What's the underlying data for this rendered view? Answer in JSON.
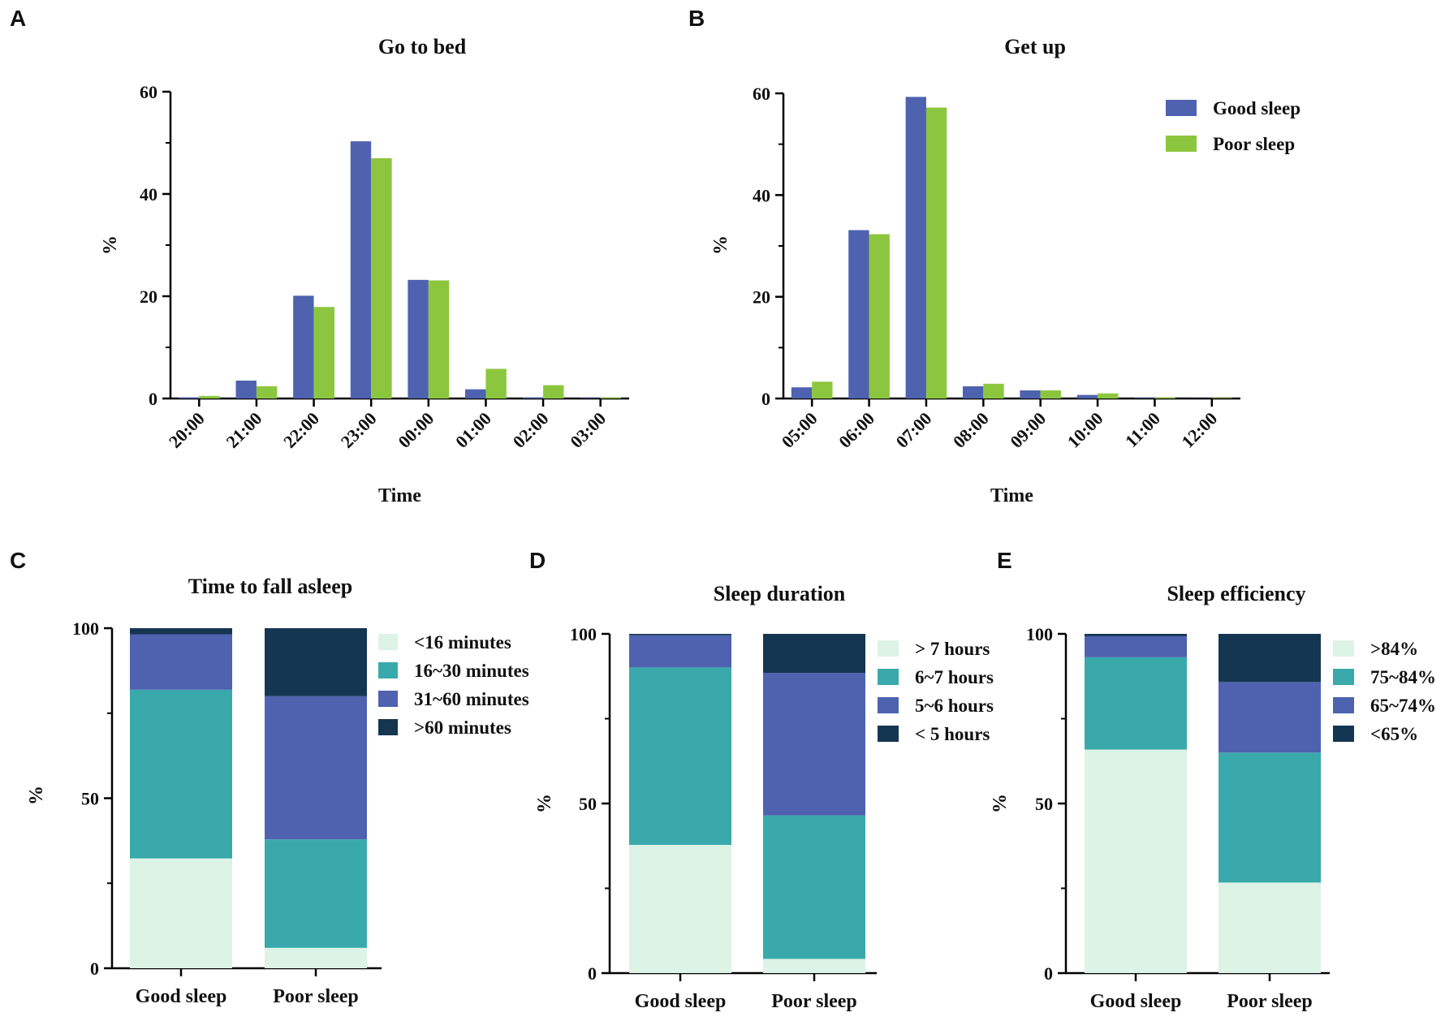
{
  "colors": {
    "good": "#4e62b0",
    "poor": "#8cc63f",
    "stack": [
      "#ddf3e5",
      "#3aa9ab",
      "#4e62b0",
      "#153651"
    ],
    "axis": "#000000"
  },
  "chart_data": [
    {
      "panel": "A",
      "type": "bar",
      "title": "Go to bed",
      "xlabel": "Time",
      "ylabel": "%",
      "ylim": [
        0,
        60
      ],
      "yticks": [
        0,
        20,
        40,
        60
      ],
      "categories": [
        "20:00",
        "21:00",
        "22:00",
        "23:00",
        "00:00",
        "01:00",
        "02:00",
        "03:00"
      ],
      "series": [
        {
          "name": "Good sleep",
          "values": [
            0.2,
            3.5,
            20.1,
            50.3,
            23.2,
            1.8,
            0.2,
            0.1
          ]
        },
        {
          "name": "Poor sleep",
          "values": [
            0.5,
            2.4,
            17.9,
            47.0,
            23.1,
            5.8,
            2.6,
            0.2
          ]
        }
      ]
    },
    {
      "panel": "B",
      "type": "bar",
      "title": "Get up",
      "xlabel": "Time",
      "ylabel": "%",
      "ylim": [
        0,
        60
      ],
      "yticks": [
        0,
        20,
        40,
        60
      ],
      "categories": [
        "05:00",
        "06:00",
        "07:00",
        "08:00",
        "09:00",
        "10:00",
        "11:00",
        "12:00"
      ],
      "legend": [
        "Good sleep",
        "Poor sleep"
      ],
      "series": [
        {
          "name": "Good sleep",
          "values": [
            2.2,
            33.1,
            59.3,
            2.4,
            1.6,
            0.7,
            0.1,
            0.05
          ]
        },
        {
          "name": "Poor sleep",
          "values": [
            3.3,
            32.3,
            57.2,
            2.9,
            1.6,
            1.0,
            0.2,
            0.1
          ]
        }
      ]
    },
    {
      "panel": "C",
      "type": "bar",
      "stacked": true,
      "title": "Time to fall asleep",
      "ylabel": "%",
      "ylim": [
        0,
        100
      ],
      "yticks": [
        0,
        50,
        100
      ],
      "categories": [
        "Good sleep",
        "Poor sleep"
      ],
      "legend": [
        "<16 minutes",
        "16~30 minutes",
        "31~60 minutes",
        ">60 minutes"
      ],
      "series": [
        {
          "name": "<16 minutes",
          "values": [
            32.3,
            6.0
          ]
        },
        {
          "name": "16~30 minutes",
          "values": [
            49.6,
            31.9
          ]
        },
        {
          "name": "31~60 minutes",
          "values": [
            16.3,
            42.1
          ]
        },
        {
          "name": ">60 minutes",
          "values": [
            1.8,
            20.0
          ]
        }
      ]
    },
    {
      "panel": "D",
      "type": "bar",
      "stacked": true,
      "title": "Sleep duration",
      "ylabel": "%",
      "ylim": [
        0,
        100
      ],
      "yticks": [
        0,
        50,
        100
      ],
      "categories": [
        "Good sleep",
        "Poor sleep"
      ],
      "legend": [
        "> 7 hours",
        "6~7 hours",
        "5~6 hours",
        "< 5 hours"
      ],
      "series": [
        {
          "name": "> 7 hours",
          "values": [
            37.8,
            4.2
          ]
        },
        {
          "name": "6~7 hours",
          "values": [
            52.3,
            42.3
          ]
        },
        {
          "name": "5~6 hours",
          "values": [
            9.5,
            42.0
          ]
        },
        {
          "name": "< 5 hours",
          "values": [
            0.4,
            11.5
          ]
        }
      ]
    },
    {
      "panel": "E",
      "type": "bar",
      "stacked": true,
      "title": "Sleep efficiency",
      "ylabel": "%",
      "ylim": [
        0,
        100
      ],
      "yticks": [
        0,
        50,
        100
      ],
      "categories": [
        "Good sleep",
        "Poor sleep"
      ],
      "legend": [
        ">84%",
        "75~84%",
        "65~74%",
        "<65%"
      ],
      "series": [
        {
          "name": ">84%",
          "values": [
            65.9,
            26.7
          ]
        },
        {
          "name": "75~84%",
          "values": [
            27.2,
            38.3
          ]
        },
        {
          "name": "65~74%",
          "values": [
            6.2,
            20.8
          ]
        },
        {
          "name": "<65%",
          "values": [
            0.7,
            14.2
          ]
        }
      ]
    }
  ]
}
